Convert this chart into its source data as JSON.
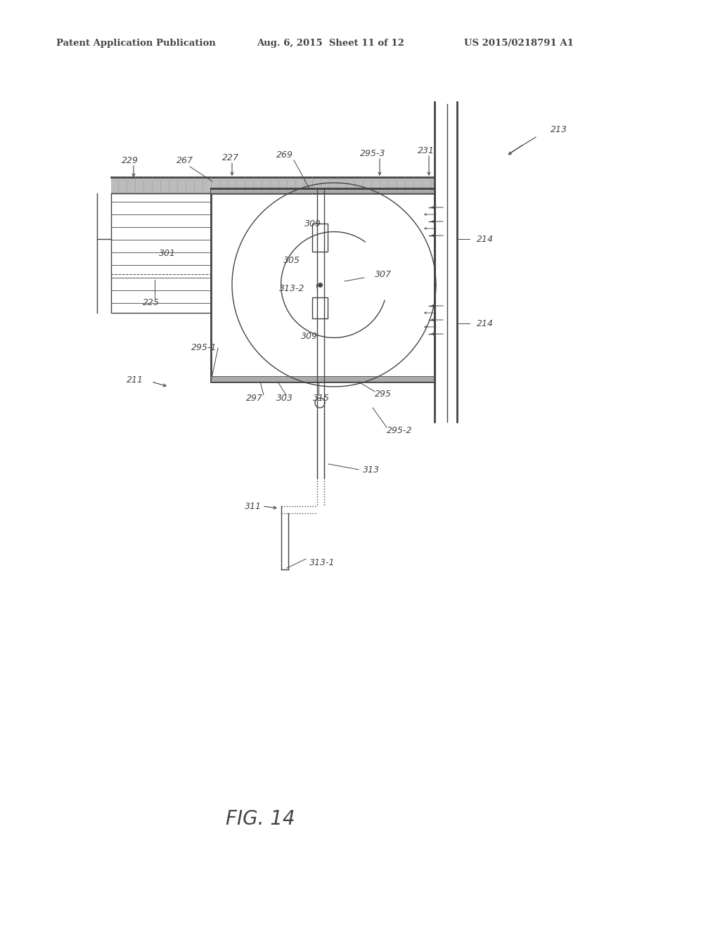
{
  "header_left": "Patent Application Publication",
  "header_center": "Aug. 6, 2015  Sheet 11 of 12",
  "header_right": "US 2015/0218791 A1",
  "title": "FIG. 14",
  "bg_color": "#ffffff",
  "line_color": "#444444",
  "gray_color": "#888888",
  "dark_gray": "#555555",
  "lw_main": 1.0,
  "lw_thick": 2.0,
  "lw_thin": 0.6,
  "fig_width": 10.24,
  "fig_height": 13.2,
  "dpi": 100
}
